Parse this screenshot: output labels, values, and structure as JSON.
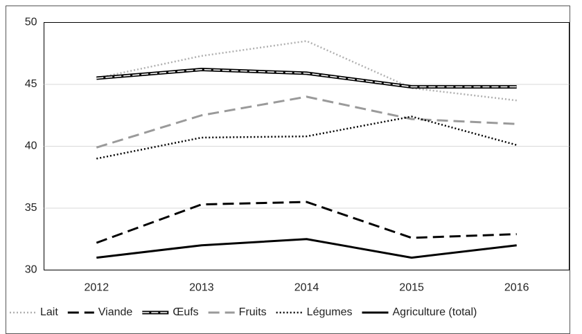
{
  "chart_data": {
    "type": "line",
    "categories": [
      "2012",
      "2013",
      "2014",
      "2015",
      "2016"
    ],
    "series": [
      {
        "name": "Lait",
        "color": "#b0b0b0",
        "dash": "dotted",
        "values": [
          45.5,
          47.3,
          48.5,
          44.7,
          43.7
        ]
      },
      {
        "name": "Viande",
        "color": "#000000",
        "dash": "dashed",
        "values": [
          32.2,
          35.3,
          35.5,
          32.6,
          32.9
        ]
      },
      {
        "name": "Œufs",
        "color": "#000000",
        "dash": "double",
        "values": [
          45.5,
          46.2,
          45.9,
          44.8,
          44.8
        ]
      },
      {
        "name": "Fruits",
        "color": "#9a9a9a",
        "dash": "dashed",
        "values": [
          39.9,
          42.5,
          44.0,
          42.2,
          41.8
        ]
      },
      {
        "name": "Légumes",
        "color": "#000000",
        "dash": "dotted",
        "values": [
          39.0,
          40.7,
          40.8,
          42.4,
          40.1
        ]
      },
      {
        "name": "Agriculture (total)",
        "color": "#000000",
        "dash": "solid",
        "values": [
          31.0,
          32.0,
          32.5,
          31.0,
          32.0
        ]
      }
    ],
    "ylim": [
      30,
      50
    ],
    "yticks": [
      30,
      35,
      40,
      45,
      50
    ],
    "grid": true,
    "legend": "bottom"
  }
}
